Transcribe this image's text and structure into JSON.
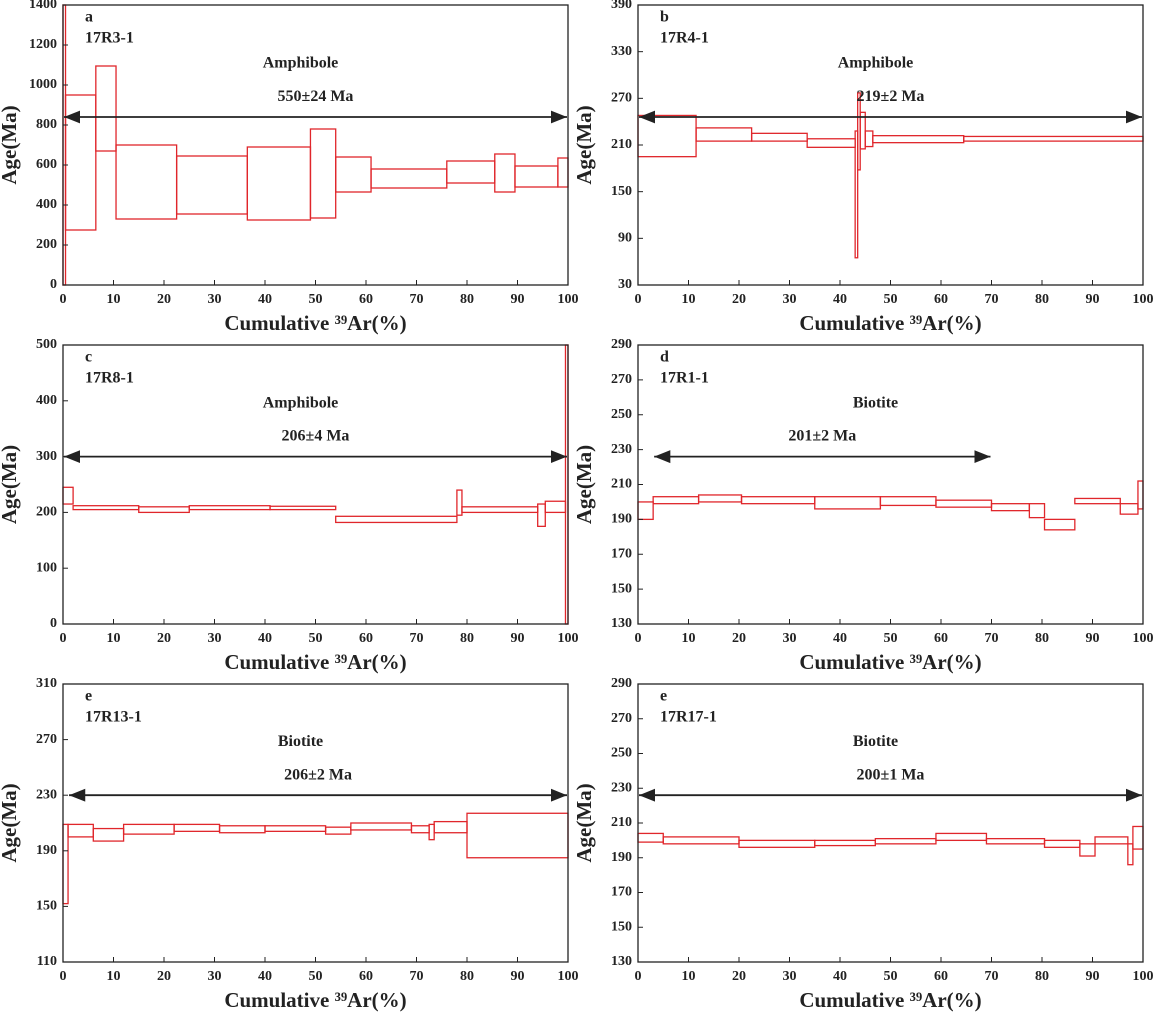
{
  "chart_data": [
    {
      "type": "age-spectrum",
      "panel": "a",
      "sample": "17R3-1",
      "mineral": "Amphibole",
      "plateau": {
        "label": "550±24 Ma",
        "x": [
          0,
          100
        ]
      },
      "xlabel": "Cumulative ³⁹Ar(%)",
      "ylabel": "Age(Ma)",
      "color": "#e0262b",
      "xlim": [
        0,
        100
      ],
      "xticks": [
        0,
        10,
        20,
        30,
        40,
        50,
        60,
        70,
        80,
        90,
        100
      ],
      "ylim": [
        0,
        1400
      ],
      "yticks": [
        0,
        200,
        400,
        600,
        800,
        1000,
        1200,
        1400
      ],
      "steps": [
        [
          0,
          0.5,
          0,
          1400
        ],
        [
          0.5,
          6.5,
          275,
          950
        ],
        [
          6.5,
          10.5,
          670,
          1095
        ],
        [
          10.5,
          22.5,
          330,
          700
        ],
        [
          22.5,
          36.5,
          355,
          645
        ],
        [
          36.5,
          49,
          325,
          690
        ],
        [
          49,
          54,
          335,
          780
        ],
        [
          54,
          61,
          465,
          640
        ],
        [
          61,
          76,
          485,
          580
        ],
        [
          76,
          85.5,
          510,
          620
        ],
        [
          85.5,
          89.5,
          465,
          655
        ],
        [
          89.5,
          98,
          490,
          595
        ],
        [
          98,
          100,
          490,
          635
        ]
      ]
    },
    {
      "type": "age-spectrum",
      "panel": "b",
      "sample": "17R4-1",
      "mineral": "Amphibole",
      "plateau": {
        "label": "219±2 Ma",
        "x": [
          0,
          100
        ]
      },
      "xlabel": "Cumulative ³⁹Ar(%)",
      "ylabel": "Age(Ma)",
      "color": "#e0262b",
      "xlim": [
        0,
        100
      ],
      "xticks": [
        0,
        10,
        20,
        30,
        40,
        50,
        60,
        70,
        80,
        90,
        100
      ],
      "ylim": [
        30,
        390
      ],
      "yticks": [
        30,
        90,
        150,
        210,
        270,
        330,
        390
      ],
      "steps": [
        [
          0,
          11.5,
          195,
          248
        ],
        [
          11.5,
          22.5,
          215,
          232
        ],
        [
          22.5,
          33.5,
          215,
          225
        ],
        [
          33.5,
          43,
          207,
          218
        ],
        [
          43,
          43.5,
          65,
          228
        ],
        [
          43.5,
          44,
          178,
          277
        ],
        [
          44,
          45,
          205,
          252
        ],
        [
          45,
          46.5,
          208,
          228
        ],
        [
          46.5,
          64.5,
          213,
          222
        ],
        [
          64.5,
          100,
          215,
          221
        ]
      ]
    },
    {
      "type": "age-spectrum",
      "panel": "c",
      "sample": "17R8-1",
      "mineral": "Amphibole",
      "plateau": {
        "label": "206±4 Ma",
        "x": [
          0,
          100
        ]
      },
      "xlabel": "Cumulative ³⁹Ar(%)",
      "ylabel": "Age(Ma)",
      "color": "#e0262b",
      "xlim": [
        0,
        100
      ],
      "xticks": [
        0,
        10,
        20,
        30,
        40,
        50,
        60,
        70,
        80,
        90,
        100
      ],
      "ylim": [
        0,
        500
      ],
      "yticks": [
        0,
        100,
        200,
        300,
        400,
        500
      ],
      "steps": [
        [
          0,
          2,
          215,
          245
        ],
        [
          2,
          15,
          205,
          212
        ],
        [
          15,
          25,
          200,
          210
        ],
        [
          25,
          41,
          205,
          212
        ],
        [
          41,
          54,
          205,
          211
        ],
        [
          54,
          78,
          182,
          193
        ],
        [
          78,
          79,
          195,
          240
        ],
        [
          79,
          94,
          200,
          210
        ],
        [
          94,
          95.5,
          175,
          215
        ],
        [
          95.5,
          99.5,
          200,
          220
        ],
        [
          99.5,
          100,
          0,
          500
        ]
      ]
    },
    {
      "type": "age-spectrum",
      "panel": "d",
      "sample": "17R1-1",
      "mineral": "Biotite",
      "plateau": {
        "label": "201±2 Ma",
        "x": [
          3,
          70
        ]
      },
      "xlabel": "Cumulative ³⁹Ar(%)",
      "ylabel": "Age(Ma)",
      "color": "#e0262b",
      "xlim": [
        0,
        100
      ],
      "xticks": [
        0,
        10,
        20,
        30,
        40,
        50,
        60,
        70,
        80,
        90,
        100
      ],
      "ylim": [
        130,
        290
      ],
      "yticks": [
        130,
        150,
        170,
        190,
        210,
        230,
        250,
        270,
        290
      ],
      "steps": [
        [
          0,
          3,
          190,
          200
        ],
        [
          3,
          12,
          199,
          203
        ],
        [
          12,
          20.5,
          200,
          204
        ],
        [
          20.5,
          35,
          199,
          203
        ],
        [
          35,
          48,
          196,
          203
        ],
        [
          48,
          59,
          198,
          203
        ],
        [
          59,
          70,
          197,
          201
        ],
        [
          70,
          77.5,
          195,
          199
        ],
        [
          77.5,
          80.5,
          191,
          199
        ],
        [
          80.5,
          86.5,
          184,
          190
        ],
        [
          86.5,
          95.5,
          199,
          202
        ],
        [
          95.5,
          99,
          193,
          199
        ],
        [
          99,
          100,
          196,
          212
        ]
      ]
    },
    {
      "type": "age-spectrum",
      "panel": "e",
      "sample": "17R13-1",
      "mineral": "Biotite",
      "plateau": {
        "label": "206±2 Ma",
        "x": [
          1,
          100
        ]
      },
      "xlabel": "Cumulative ³⁹Ar(%)",
      "ylabel": "Age(Ma)",
      "color": "#e0262b",
      "xlim": [
        0,
        100
      ],
      "xticks": [
        0,
        10,
        20,
        30,
        40,
        50,
        60,
        70,
        80,
        90,
        100
      ],
      "ylim": [
        110,
        310
      ],
      "yticks": [
        110,
        150,
        190,
        230,
        270,
        310
      ],
      "steps": [
        [
          0,
          1,
          152,
          209
        ],
        [
          1,
          6,
          200,
          209
        ],
        [
          6,
          12,
          197,
          206
        ],
        [
          12,
          22,
          202,
          209
        ],
        [
          22,
          31,
          204,
          209
        ],
        [
          31,
          40,
          203,
          208
        ],
        [
          40,
          52,
          204,
          208
        ],
        [
          52,
          57,
          202,
          207
        ],
        [
          57,
          69,
          205,
          210
        ],
        [
          69,
          72.5,
          203,
          208
        ],
        [
          72.5,
          73.5,
          198,
          209
        ],
        [
          73.5,
          80,
          203,
          211
        ],
        [
          80,
          100,
          185,
          217
        ]
      ]
    },
    {
      "type": "age-spectrum",
      "panel": "e",
      "sample": "17R17-1",
      "mineral": "Biotite",
      "plateau": {
        "label": "200±1 Ma",
        "x": [
          0,
          100
        ]
      },
      "xlabel": "Cumulative ³⁹Ar(%)",
      "ylabel": "Age(Ma)",
      "color": "#e0262b",
      "xlim": [
        0,
        100
      ],
      "xticks": [
        0,
        10,
        20,
        30,
        40,
        50,
        60,
        70,
        80,
        90,
        100
      ],
      "ylim": [
        130,
        290
      ],
      "yticks": [
        130,
        150,
        170,
        190,
        210,
        230,
        250,
        270,
        290
      ],
      "steps": [
        [
          0,
          5,
          199,
          204
        ],
        [
          5,
          20,
          198,
          202
        ],
        [
          20,
          35,
          196,
          200
        ],
        [
          35,
          47,
          197,
          200
        ],
        [
          47,
          59,
          198,
          201
        ],
        [
          59,
          69,
          200,
          204
        ],
        [
          69,
          80.5,
          198,
          201
        ],
        [
          80.5,
          87.5,
          196,
          200
        ],
        [
          87.5,
          90.5,
          191,
          198
        ],
        [
          90.5,
          97,
          198,
          202
        ],
        [
          97,
          98,
          186,
          198
        ],
        [
          98,
          100,
          195,
          208
        ]
      ]
    }
  ]
}
